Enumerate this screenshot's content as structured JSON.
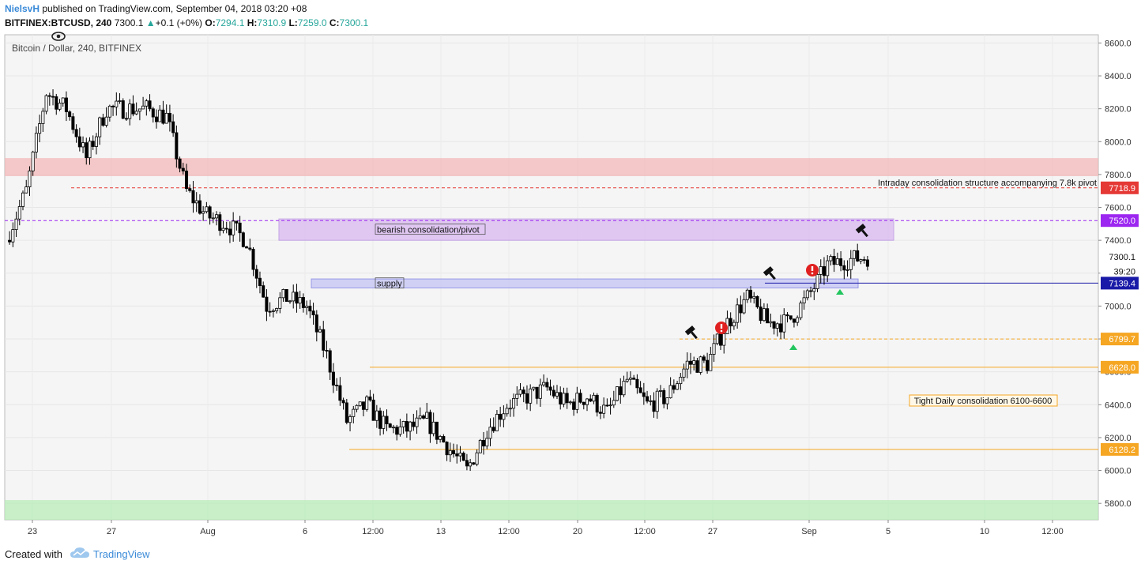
{
  "header": {
    "author": "NielsvH",
    "published": "published on TradingView.com, September 04, 2018 03:20 +08",
    "symbol": "BITFINEX:BTCUSD, 240",
    "last": "7300.1",
    "change": "+0.1 (+0%)",
    "o_label": "O:",
    "o": "7294.1",
    "h_label": "H:",
    "h": "7310.9",
    "l_label": "L:",
    "l": "7259.0",
    "c_label": "C:",
    "c": "7300.1"
  },
  "chart_title": "Bitcoin / Dollar, 240, BITFINEX",
  "footer": {
    "created_with": "Created with",
    "brand": "TradingView"
  },
  "colors": {
    "up": "#000000",
    "down": "#000000",
    "resistance_zone": "#f3b8b8",
    "support_zone": "#b8ecb8",
    "pivot_zone": "#d9b8f2",
    "supply_zone": "#c4c4f4",
    "orange_line": "#f5a623",
    "red_line": "#e53935",
    "purple_line": "#9c27f0",
    "blue_line": "#1a1aa8"
  },
  "chart_data": {
    "type": "candlestick",
    "title": "Bitcoin / Dollar, 240, BITFINEX",
    "timeframe": "240",
    "ylim": [
      5700,
      8650
    ],
    "y_ticks": [
      5800,
      6000,
      6200,
      6400,
      6600,
      6800,
      7000,
      7200,
      7400,
      7600,
      7800,
      8000,
      8200,
      8400,
      8600
    ],
    "x_ticks": [
      "23",
      "27",
      "Aug",
      "6",
      "12:00",
      "13",
      "12:00",
      "20",
      "12:00",
      "27",
      "Sep",
      "5",
      "10",
      "12:00"
    ],
    "price_labels": [
      {
        "value": "7718.9",
        "color": "#e53935"
      },
      {
        "value": "7520.0",
        "color": "#9c27f0"
      },
      {
        "value": "7300.1",
        "color": "#ffffff"
      },
      {
        "value": "39:20",
        "color": "#ffffff"
      },
      {
        "value": "7139.4",
        "color": "#1a1aa8"
      },
      {
        "value": "6799.7",
        "color": "#f5a623"
      },
      {
        "value": "6628.0",
        "color": "#f5a623"
      },
      {
        "value": "6128.2",
        "color": "#f5a623"
      }
    ],
    "horizontal_levels": [
      {
        "price": 7718.9,
        "style": "dashed",
        "color": "#e53935"
      },
      {
        "price": 7520.0,
        "style": "dashed",
        "color": "#9c27f0"
      },
      {
        "price": 7139.4,
        "style": "solid",
        "color": "#1a1aa8"
      },
      {
        "price": 6799.7,
        "style": "dashed",
        "color": "#f5a623"
      },
      {
        "price": 6628.0,
        "style": "solid",
        "color": "#f5a623"
      },
      {
        "price": 6128.2,
        "style": "solid",
        "color": "#f5a623"
      }
    ],
    "zones": [
      {
        "label": "",
        "from": 7790,
        "to": 7900,
        "color": "#f3b8b8"
      },
      {
        "label": "bearish consolidation/pivot",
        "from": 7400,
        "to": 7530,
        "color": "#d9b8f2"
      },
      {
        "label": "supply",
        "from": 7110,
        "to": 7165,
        "color": "#c4c4f4"
      },
      {
        "label": "",
        "from": 5700,
        "to": 5820,
        "color": "#b8ecb8"
      }
    ],
    "annotations": [
      "Intraday consolidation structure accompanying 7.8k pivot",
      "Tight Daily consolidation 6100-6600"
    ],
    "close_path": [
      {
        "x": "23 Jul",
        "y": 7400
      },
      {
        "x": "24 Jul",
        "y": 7700
      },
      {
        "x": "25 Jul",
        "y": 8300
      },
      {
        "x": "26 Jul",
        "y": 8200
      },
      {
        "x": "27 Jul",
        "y": 7900
      },
      {
        "x": "28 Jul",
        "y": 8200
      },
      {
        "x": "29 Jul",
        "y": 8200
      },
      {
        "x": "30 Jul",
        "y": 8200
      },
      {
        "x": "31 Jul",
        "y": 8150
      },
      {
        "x": "1 Aug",
        "y": 7700
      },
      {
        "x": "2 Aug",
        "y": 7550
      },
      {
        "x": "3 Aug",
        "y": 7500
      },
      {
        "x": "4 Aug",
        "y": 7400
      },
      {
        "x": "5 Aug",
        "y": 7000
      },
      {
        "x": "6 Aug",
        "y": 7050
      },
      {
        "x": "7 Aug",
        "y": 7000
      },
      {
        "x": "8 Aug",
        "y": 6700
      },
      {
        "x": "9 Aug",
        "y": 6300
      },
      {
        "x": "10 Aug",
        "y": 6400
      },
      {
        "x": "11 Aug",
        "y": 6250
      },
      {
        "x": "12 Aug",
        "y": 6250
      },
      {
        "x": "13 Aug",
        "y": 6300
      },
      {
        "x": "14 Aug",
        "y": 6150
      },
      {
        "x": "15 Aug",
        "y": 6000
      },
      {
        "x": "16 Aug",
        "y": 6250
      },
      {
        "x": "17 Aug",
        "y": 6400
      },
      {
        "x": "18 Aug",
        "y": 6450
      },
      {
        "x": "19 Aug",
        "y": 6500
      },
      {
        "x": "20 Aug",
        "y": 6400
      },
      {
        "x": "21 Aug",
        "y": 6450
      },
      {
        "x": "22 Aug",
        "y": 6350
      },
      {
        "x": "23 Aug",
        "y": 6550
      },
      {
        "x": "24 Aug",
        "y": 6400
      },
      {
        "x": "25 Aug",
        "y": 6450
      },
      {
        "x": "26 Aug",
        "y": 6650
      },
      {
        "x": "27 Aug",
        "y": 6650
      },
      {
        "x": "28 Aug",
        "y": 6900
      },
      {
        "x": "29 Aug",
        "y": 7050
      },
      {
        "x": "30 Aug",
        "y": 6900
      },
      {
        "x": "31 Aug",
        "y": 6900
      },
      {
        "x": "1 Sep",
        "y": 7050
      },
      {
        "x": "2 Sep",
        "y": 7250
      },
      {
        "x": "3 Sep",
        "y": 7280
      },
      {
        "x": "4 Sep",
        "y": 7300.1
      }
    ]
  }
}
